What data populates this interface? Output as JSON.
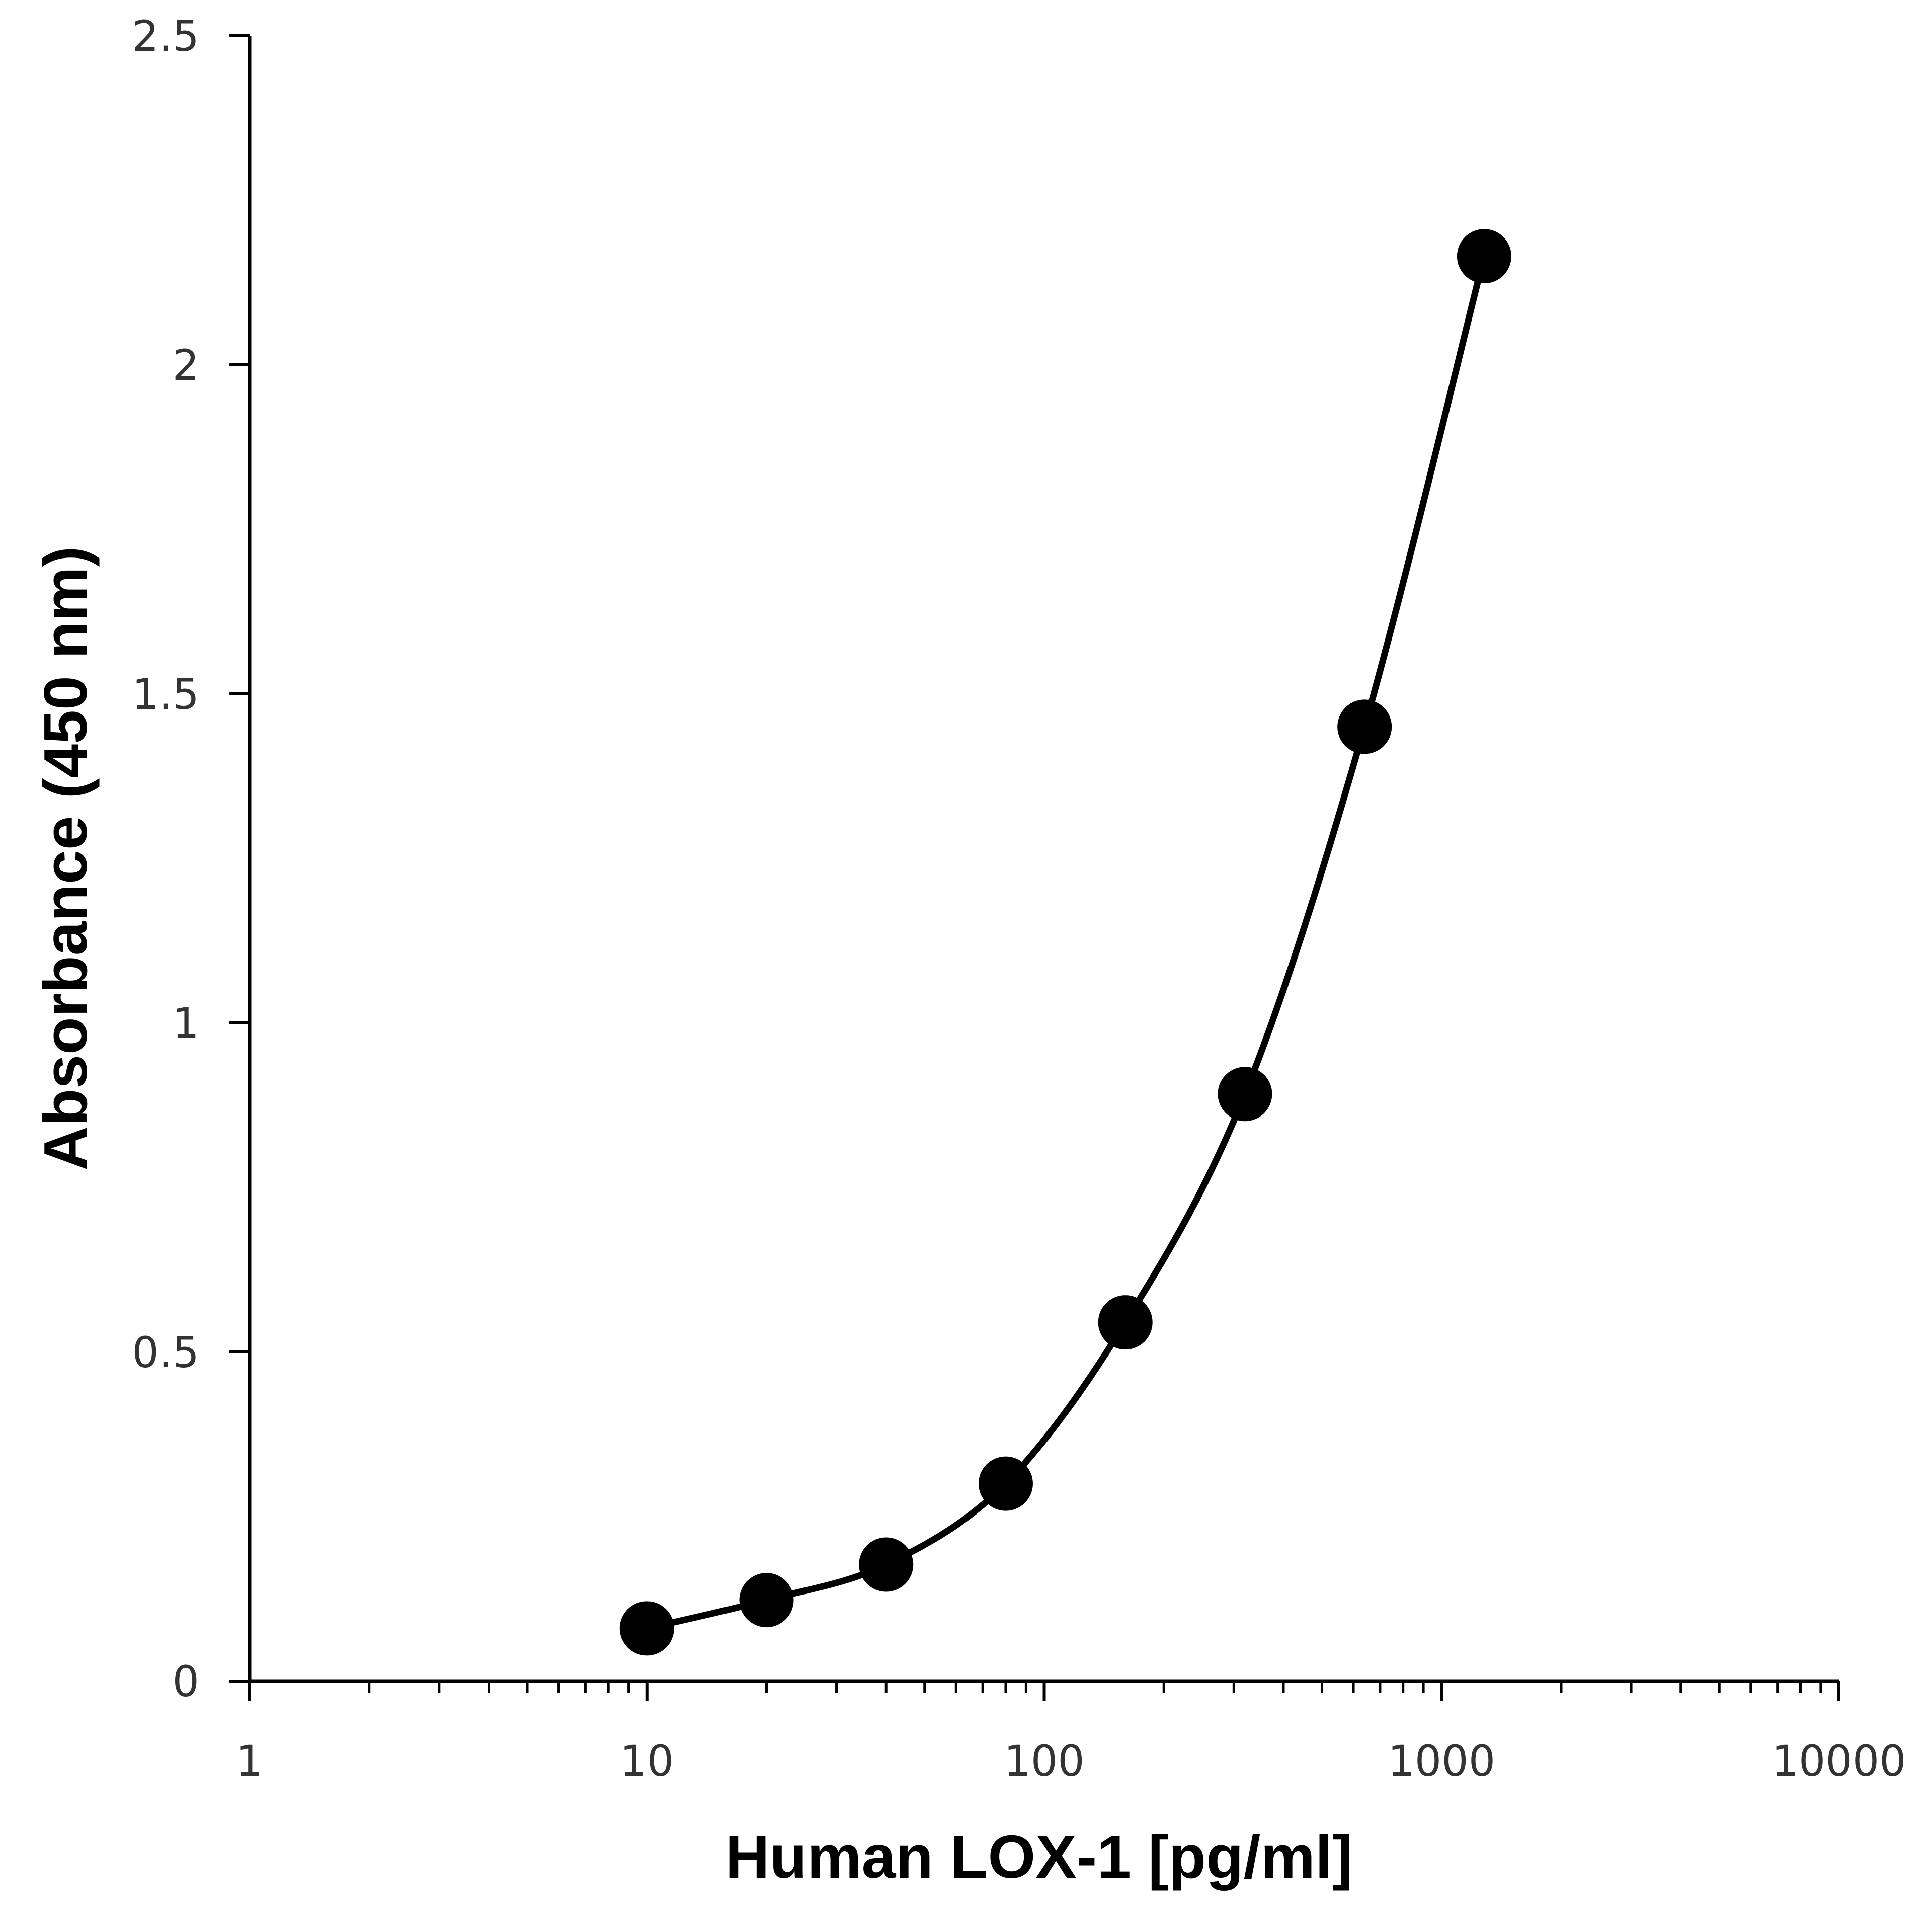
{
  "chart_data": {
    "type": "scatter",
    "xlabel": "Human LOX-1 [pg/ml]",
    "ylabel": "Absorbance (450 nm)",
    "x_scale": "log",
    "xlim": [
      1,
      10000
    ],
    "ylim": [
      0,
      2.5
    ],
    "x_ticks": [
      "1",
      "10",
      "100",
      "1000",
      "10000"
    ],
    "y_ticks": [
      "0",
      "0.5",
      "1",
      "1.5",
      "2",
      "2.5"
    ],
    "grid": false,
    "legend": "none",
    "line": "smooth",
    "marker_color": "#000000",
    "series": [
      {
        "x": [
          10,
          20,
          40,
          80,
          160,
          320,
          640,
          1280
        ],
        "y": [
          0.08,
          0.123,
          0.177,
          0.3,
          0.545,
          0.892,
          1.45,
          2.165
        ]
      }
    ]
  }
}
